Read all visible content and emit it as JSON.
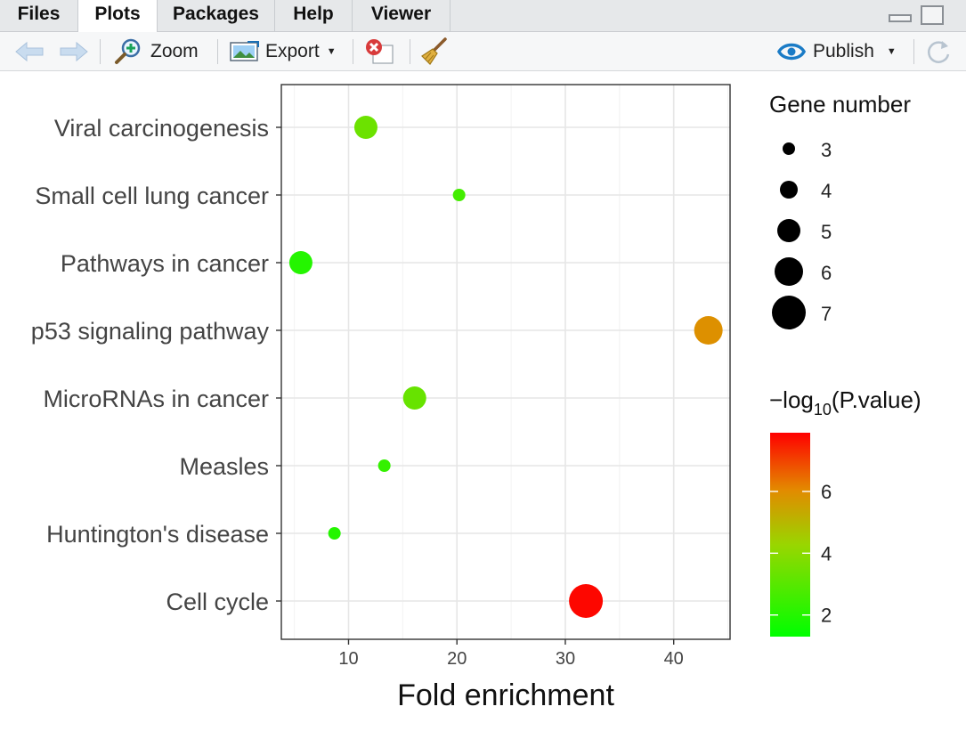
{
  "tabs": [
    {
      "label": "Files"
    },
    {
      "label": "Plots"
    },
    {
      "label": "Packages"
    },
    {
      "label": "Help"
    },
    {
      "label": "Viewer"
    }
  ],
  "active_tab": "Plots",
  "toolbar": {
    "zoom_label": "Zoom",
    "export_label": "Export",
    "publish_label": "Publish"
  },
  "icons": {
    "back": "arrow-left-icon",
    "forward": "arrow-right-icon",
    "zoom": "magnifier-plus-icon",
    "export": "image-export-icon",
    "remove": "remove-plot-icon",
    "clear": "broom-icon",
    "publish": "publish-icon",
    "refresh": "refresh-icon",
    "minimize": "minimize-icon",
    "maximize": "maximize-icon"
  },
  "colors": {
    "low": "#00ff00",
    "mid": "#aad400",
    "high": "#ff0000",
    "panel_border": "#333333"
  },
  "chart_data": {
    "type": "scatter",
    "xlabel": "Fold enrichment",
    "xlim": [
      3.8,
      45.2
    ],
    "xticks": [
      10,
      20,
      30,
      40
    ],
    "categories": [
      "Viral carcinogenesis",
      "Small cell lung cancer",
      "Pathways in cancer",
      "p53 signaling pathway",
      "MicroRNAs in cancer",
      "Measles",
      "Huntington's disease",
      "Cell cycle"
    ],
    "points": [
      {
        "category": "Viral carcinogenesis",
        "x": 11.6,
        "gene_number": 5,
        "neg_log10_p": 3.4
      },
      {
        "category": "Small cell lung cancer",
        "x": 20.2,
        "gene_number": 3,
        "neg_log10_p": 2.6
      },
      {
        "category": "Pathways in cancer",
        "x": 5.6,
        "gene_number": 5,
        "neg_log10_p": 2.0
      },
      {
        "category": "p53 signaling pathway",
        "x": 43.2,
        "gene_number": 6,
        "neg_log10_p": 5.9
      },
      {
        "category": "MicroRNAs in cancer",
        "x": 16.1,
        "gene_number": 5,
        "neg_log10_p": 3.3
      },
      {
        "category": "Measles",
        "x": 13.3,
        "gene_number": 3,
        "neg_log10_p": 2.3
      },
      {
        "category": "Huntington's disease",
        "x": 8.7,
        "gene_number": 3,
        "neg_log10_p": 2.0
      },
      {
        "category": "Cell cycle",
        "x": 31.9,
        "gene_number": 7,
        "neg_log10_p": 7.8
      }
    ],
    "size_legend": {
      "title": "Gene number",
      "values": [
        3,
        4,
        5,
        6,
        7
      ]
    },
    "color_legend": {
      "title_prefix": "−log",
      "title_sub": "10",
      "title_suffix": "(P.value)",
      "range": [
        1.3,
        7.9
      ],
      "ticks": [
        2,
        4,
        6
      ]
    },
    "grid": true,
    "legend_position": "right"
  }
}
